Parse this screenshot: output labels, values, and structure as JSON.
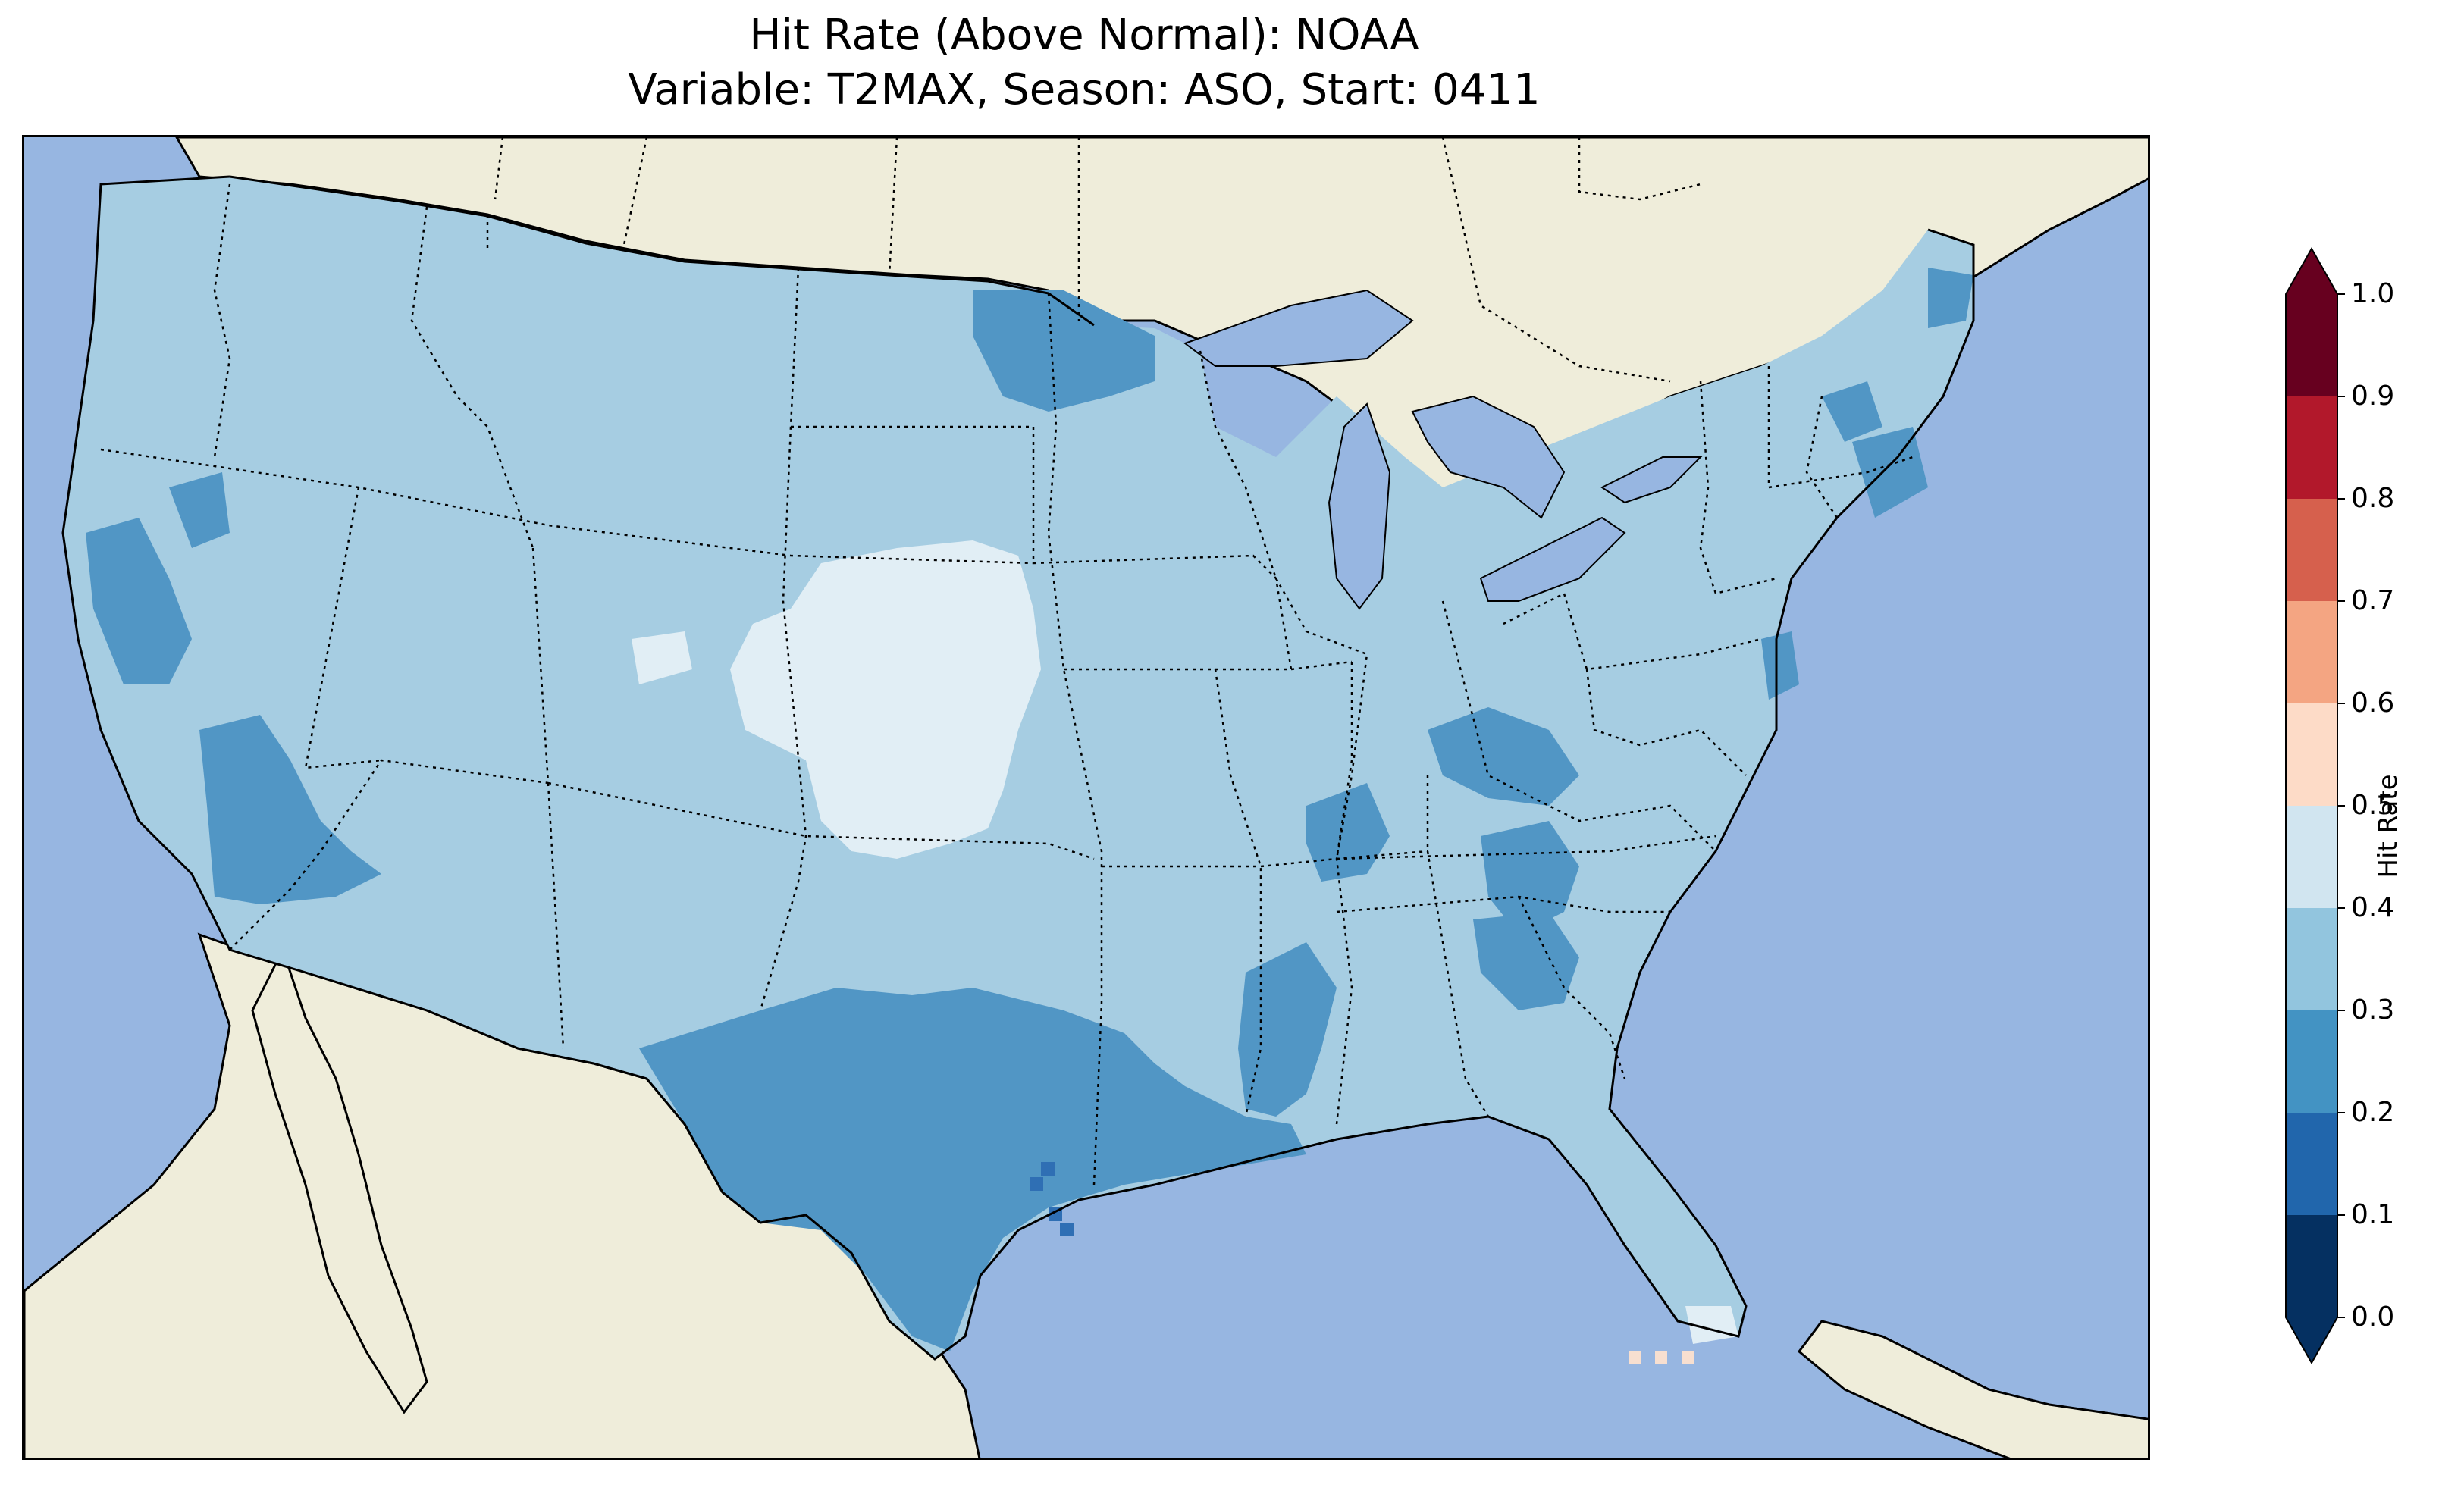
{
  "title": {
    "line1": "Hit Rate (Above Normal): NOAA",
    "line2": "Variable: T2MAX, Season: ASO, Start: 0411"
  },
  "colors": {
    "ocean": "#97b6e1",
    "land": "#efedda",
    "lakes": "#97b6e1",
    "bin_0.0_0.1": "#053061",
    "bin_0.1_0.2": "#2166ac",
    "bin_0.2_0.3": "#4393c3",
    "bin_0.3_0.4": "#92c5de",
    "bin_0.4_0.5": "#d1e5f0",
    "bin_0.5_0.6": "#fddbc7",
    "bin_0.6_0.7": "#f4a582",
    "bin_0.7_0.8": "#d6604d",
    "bin_0.8_0.9": "#b2182b",
    "bin_0.9_1.0": "#67001f"
  },
  "colorbar": {
    "label": "Hit Rate",
    "ticks": [
      "0.0",
      "0.1",
      "0.2",
      "0.3",
      "0.4",
      "0.5",
      "0.6",
      "0.7",
      "0.8",
      "0.9",
      "1.0"
    ],
    "extend": "both"
  },
  "map": {
    "region": "Contiguous United States",
    "dominant_range": "0.3–0.4",
    "regions": [
      {
        "area": "Most of CONUS",
        "range": "0.3–0.4"
      },
      {
        "area": "Central Plains (Nebraska, Kansas, eastern Colorado)",
        "range": "0.4–0.5"
      },
      {
        "area": "Texas, Louisiana, southern Mississippi",
        "range": "0.2–0.3"
      },
      {
        "area": "Central/Southern California, Nevada",
        "range": "0.2–0.3"
      },
      {
        "area": "North Dakota / Minnesota border",
        "range": "0.2–0.3"
      },
      {
        "area": "Kentucky, Tennessee, Georgia patches",
        "range": "0.2–0.3"
      },
      {
        "area": "Coastal Texas",
        "range": "0.1–0.2"
      },
      {
        "area": "Southern tip of Florida",
        "range": "0.4–0.5"
      }
    ]
  }
}
